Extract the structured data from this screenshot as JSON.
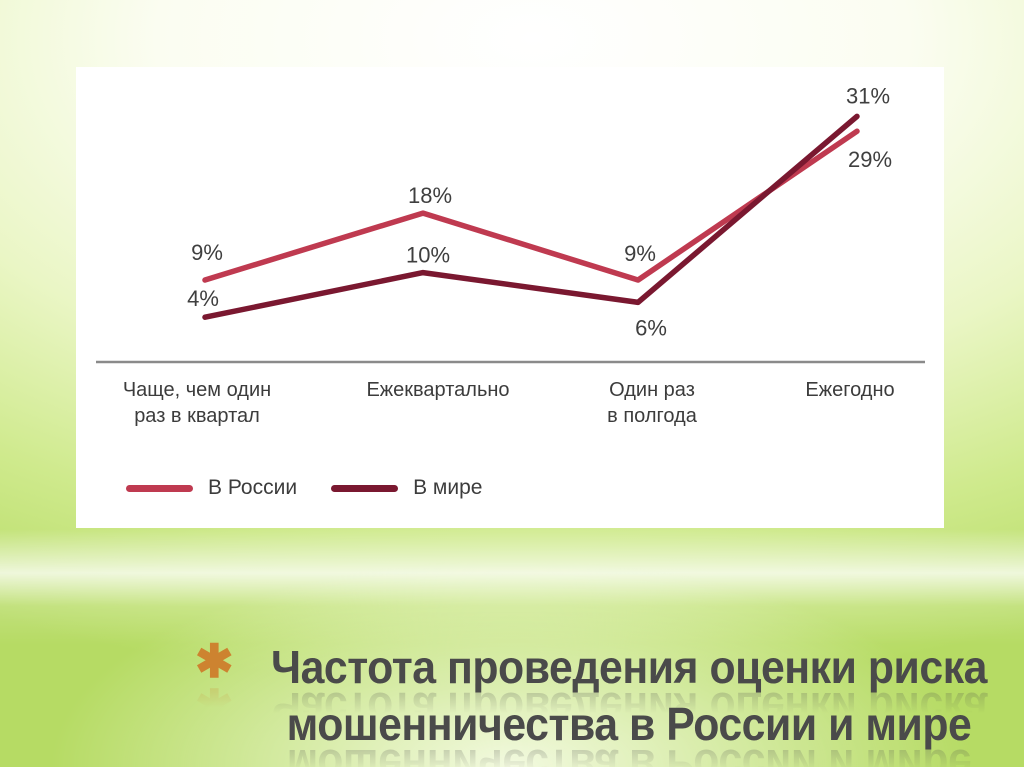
{
  "slide": {
    "title": {
      "bullet": "✱",
      "line1": "Частота проведения оценки риска",
      "line2": "мошенничества в России и мире"
    },
    "colors": {
      "russia_line": "#bf3a50",
      "world_line": "#7a1830",
      "axis": "#8a8a8a",
      "label_text": "#3f3f3f",
      "title_text": "#4a4a4a",
      "bullet_orange": "#cd8330",
      "background_green": "#bede6e",
      "panel_white": "#ffffff"
    }
  },
  "chart_data": {
    "type": "line",
    "title": "Частота проведения оценки риска мошенничества в России и мире",
    "categories": [
      "Чаще, чем один\nраз в квартал",
      "Ежеквартально",
      "Один раз\nв полгода",
      "Ежегодно"
    ],
    "series": [
      {
        "name": "В России",
        "color": "#bf3a50",
        "values": [
          9,
          18,
          9,
          29
        ],
        "labels": [
          "9%",
          "18%",
          "9%",
          "29%"
        ]
      },
      {
        "name": "В мире",
        "color": "#7a1830",
        "values": [
          4,
          10,
          6,
          31
        ],
        "labels": [
          "4%",
          "10%",
          "6%",
          "31%"
        ]
      }
    ],
    "ylim": [
      0,
      35
    ],
    "grid": false,
    "y_axis_shown": false,
    "data_labels_shown": true,
    "legend_position": "bottom-left",
    "xlabel": "",
    "ylabel": ""
  }
}
